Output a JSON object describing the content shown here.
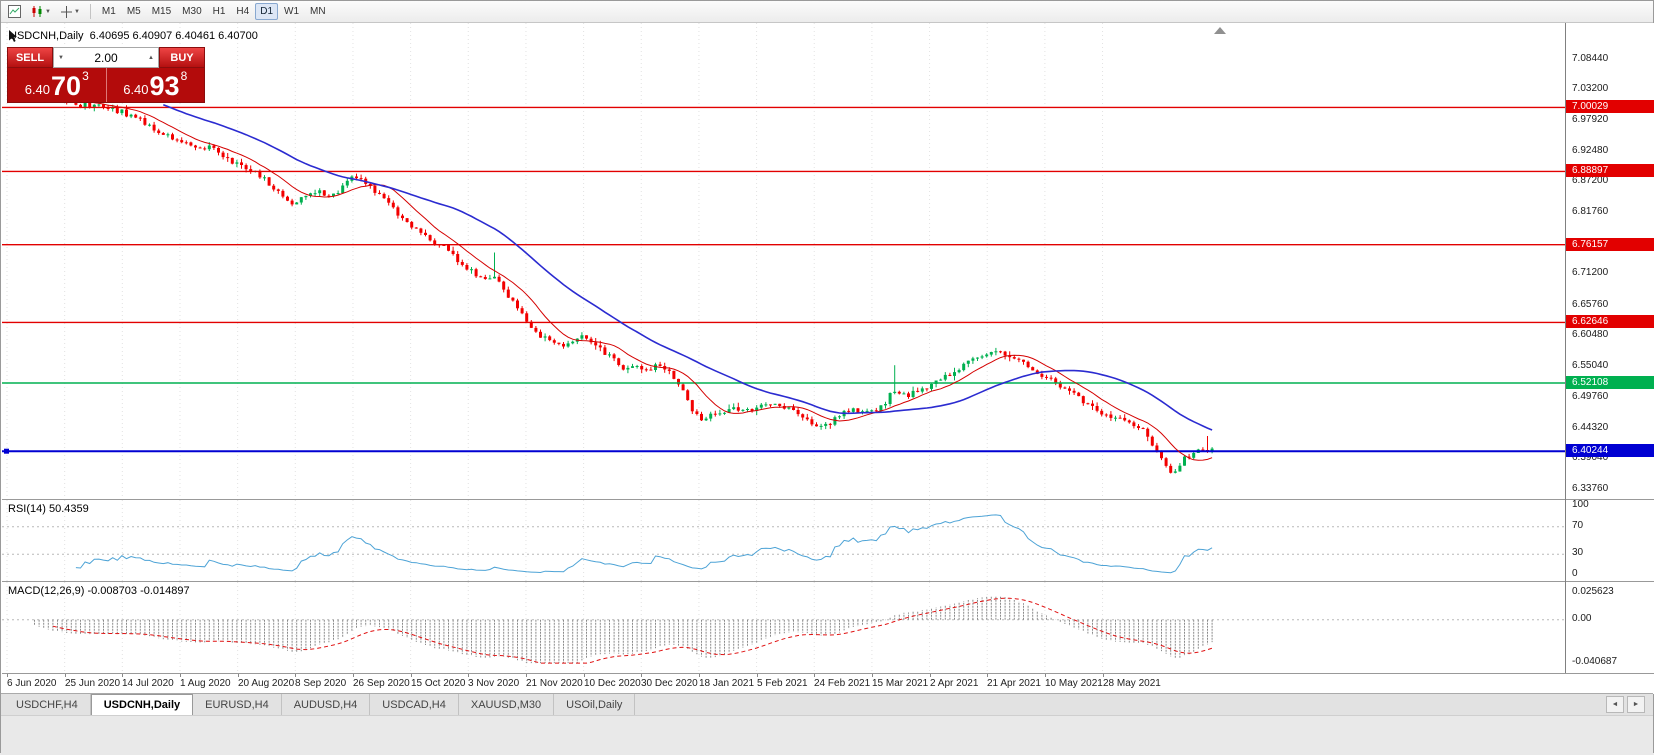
{
  "window": {
    "title": "USDCNH,Daily"
  },
  "icons": {
    "caret_down": "▼",
    "spin_up": "▲",
    "spin_down": "▼",
    "tab_left": "◄",
    "tab_right": "►"
  },
  "toolbar": {
    "timeframes": [
      "M1",
      "M5",
      "M15",
      "M30",
      "H1",
      "H4",
      "D1",
      "W1",
      "MN"
    ],
    "active_timeframe": "D1"
  },
  "chart": {
    "symbol_line": "USDCNH,Daily  6.40695 6.40907 6.40461 6.40700"
  },
  "trade_panel": {
    "sell_label": "SELL",
    "buy_label": "BUY",
    "lot": "2.00",
    "sell_price": {
      "whole": "6.40",
      "pips": "70",
      "frac": "3"
    },
    "buy_price": {
      "whole": "6.40",
      "pips": "93",
      "frac": "8"
    }
  },
  "rsi": {
    "label": "RSI(14) 50.4359",
    "ticks": [
      {
        "label": "100",
        "value": 100
      },
      {
        "label": "70",
        "value": 70
      },
      {
        "label": "30",
        "value": 30
      },
      {
        "label": "0",
        "value": 0
      }
    ],
    "levels": [
      70,
      30
    ],
    "line_color": "#4da3d6"
  },
  "macd": {
    "label": "MACD(12,26,9) -0.008703 -0.014897",
    "ticks": [
      {
        "label": "0.025623",
        "value": 0.025623
      },
      {
        "label": "0.00",
        "value": 0
      },
      {
        "label": "-0.040687",
        "value": -0.040687
      }
    ],
    "scale_max": 0.025623,
    "scale_min": -0.040687,
    "histogram_color": "#8a8a8a",
    "signal_color": "#e01010"
  },
  "price_axis": {
    "ticks": [
      {
        "label": "7.08440",
        "price": 7.0844
      },
      {
        "label": "7.03200",
        "price": 7.032
      },
      {
        "label": "6.97920",
        "price": 6.9792
      },
      {
        "label": "6.92480",
        "price": 6.9248
      },
      {
        "label": "6.87200",
        "price": 6.872
      },
      {
        "label": "6.81760",
        "price": 6.8176
      },
      {
        "label": "6.76480",
        "price": 6.7648
      },
      {
        "label": "6.71200",
        "price": 6.712
      },
      {
        "label": "6.65760",
        "price": 6.6576
      },
      {
        "label": "6.60480",
        "price": 6.6048
      },
      {
        "label": "6.55040",
        "price": 6.5504
      },
      {
        "label": "6.49760",
        "price": 6.4976
      },
      {
        "label": "6.44320",
        "price": 6.4432
      },
      {
        "label": "6.39040",
        "price": 6.3904
      },
      {
        "label": "6.33760",
        "price": 6.3376
      }
    ]
  },
  "dates": [
    "6 Jun 2020",
    "25 Jun 2020",
    "14 Jul 2020",
    "1 Aug 2020",
    "20 Aug 2020",
    "8 Sep 2020",
    "26 Sep 2020",
    "15 Oct 2020",
    "3 Nov 2020",
    "21 Nov 2020",
    "10 Dec 2020",
    "30 Dec 2020",
    "18 Jan 2021",
    "5 Feb 2021",
    "24 Feb 2021",
    "15 Mar 2021",
    "2 Apr 2021",
    "21 Apr 2021",
    "10 May 2021",
    "28 May 2021"
  ],
  "tabs": [
    {
      "label": "USDCHF,H4",
      "active": false
    },
    {
      "label": "USDCNH,Daily",
      "active": true
    },
    {
      "label": "EURUSD,H4",
      "active": false
    },
    {
      "label": "AUDUSD,H4",
      "active": false
    },
    {
      "label": "USDCAD,H4",
      "active": false
    },
    {
      "label": "XAUUSD,M30",
      "active": false
    },
    {
      "label": "USOil,Daily",
      "active": false
    }
  ],
  "chart_data": {
    "type": "candlestick",
    "symbol": "USDCNH",
    "timeframe": "Daily",
    "ohlc_display": {
      "open": 6.40695,
      "high": 6.40907,
      "low": 6.40461,
      "close": 6.407
    },
    "colors": {
      "up": "#00b050",
      "down": "#f20000"
    },
    "num_candles": 262,
    "y_range": {
      "top": 7.1471,
      "bottom": 6.3194
    },
    "price_path": [
      [
        0.0,
        7.06
      ],
      [
        0.03,
        7.02
      ],
      [
        0.055,
        7.005
      ],
      [
        0.077,
        7.0
      ],
      [
        0.095,
        6.99
      ],
      [
        0.11,
        6.975
      ],
      [
        0.13,
        6.95
      ],
      [
        0.15,
        6.935
      ],
      [
        0.168,
        6.928
      ],
      [
        0.19,
        6.9
      ],
      [
        0.205,
        6.885
      ],
      [
        0.22,
        6.855
      ],
      [
        0.235,
        6.832
      ],
      [
        0.252,
        6.856
      ],
      [
        0.268,
        6.845
      ],
      [
        0.285,
        6.88
      ],
      [
        0.298,
        6.862
      ],
      [
        0.315,
        6.83
      ],
      [
        0.33,
        6.8
      ],
      [
        0.347,
        6.77
      ],
      [
        0.364,
        6.752
      ],
      [
        0.38,
        6.72
      ],
      [
        0.393,
        6.7
      ],
      [
        0.403,
        6.705
      ],
      [
        0.418,
        6.66
      ],
      [
        0.43,
        6.625
      ],
      [
        0.443,
        6.6
      ],
      [
        0.459,
        6.585
      ],
      [
        0.476,
        6.6
      ],
      [
        0.493,
        6.575
      ],
      [
        0.509,
        6.55
      ],
      [
        0.526,
        6.545
      ],
      [
        0.542,
        6.553
      ],
      [
        0.555,
        6.528
      ],
      [
        0.567,
        6.47
      ],
      [
        0.576,
        6.455
      ],
      [
        0.59,
        6.47
      ],
      [
        0.601,
        6.478
      ],
      [
        0.617,
        6.473
      ],
      [
        0.634,
        6.488
      ],
      [
        0.651,
        6.475
      ],
      [
        0.663,
        6.455
      ],
      [
        0.676,
        6.445
      ],
      [
        0.688,
        6.463
      ],
      [
        0.7,
        6.473
      ],
      [
        0.713,
        6.468
      ],
      [
        0.725,
        6.48
      ],
      [
        0.734,
        6.508
      ],
      [
        0.746,
        6.498
      ],
      [
        0.759,
        6.51
      ],
      [
        0.771,
        6.523
      ],
      [
        0.784,
        6.54
      ],
      [
        0.796,
        6.558
      ],
      [
        0.809,
        6.57
      ],
      [
        0.821,
        6.575
      ],
      [
        0.834,
        6.565
      ],
      [
        0.846,
        6.55
      ],
      [
        0.859,
        6.536
      ],
      [
        0.871,
        6.52
      ],
      [
        0.884,
        6.5
      ],
      [
        0.896,
        6.488
      ],
      [
        0.908,
        6.47
      ],
      [
        0.921,
        6.458
      ],
      [
        0.934,
        6.448
      ],
      [
        0.944,
        6.44
      ],
      [
        0.954,
        6.4
      ],
      [
        0.962,
        6.375
      ],
      [
        0.968,
        6.358
      ],
      [
        0.975,
        6.388
      ],
      [
        0.983,
        6.398
      ],
      [
        0.991,
        6.4
      ],
      [
        1.0,
        6.407
      ]
    ],
    "spikes": [
      {
        "frac": 0.403,
        "high": 6.748
      },
      {
        "frac": 0.735,
        "high": 6.552
      },
      {
        "frac": 0.998,
        "high": 6.429
      }
    ],
    "moving_averages": [
      {
        "period": 10,
        "color": "#d40000",
        "width": 1
      },
      {
        "period": 34,
        "color": "#2b2bd0",
        "width": 1.6
      }
    ],
    "horizontal_lines": [
      {
        "price": 7.00029,
        "label": "7.00029",
        "color": "#e20000",
        "width": 1.4
      },
      {
        "price": 6.88897,
        "label": "6.88897",
        "color": "#e20000",
        "width": 1.4
      },
      {
        "price": 6.76157,
        "label": "6.76157",
        "color": "#e20000",
        "width": 1.4
      },
      {
        "price": 6.62646,
        "label": "6.62646",
        "color": "#e20000",
        "width": 1.4
      },
      {
        "price": 6.52108,
        "label": "6.52108",
        "color": "#00b050",
        "width": 1.4
      },
      {
        "price": 6.40244,
        "label": "6.40244",
        "color": "#0000d2",
        "width": 2
      }
    ],
    "indicators": [
      {
        "name": "RSI",
        "period": 14,
        "current": 50.4359,
        "levels": [
          100,
          70,
          30,
          0
        ]
      },
      {
        "name": "MACD",
        "fast": 12,
        "slow": 26,
        "signal": 9,
        "current": [
          -0.008703,
          -0.014897
        ],
        "scale": [
          0.025623,
          0,
          -0.040687
        ]
      }
    ]
  }
}
